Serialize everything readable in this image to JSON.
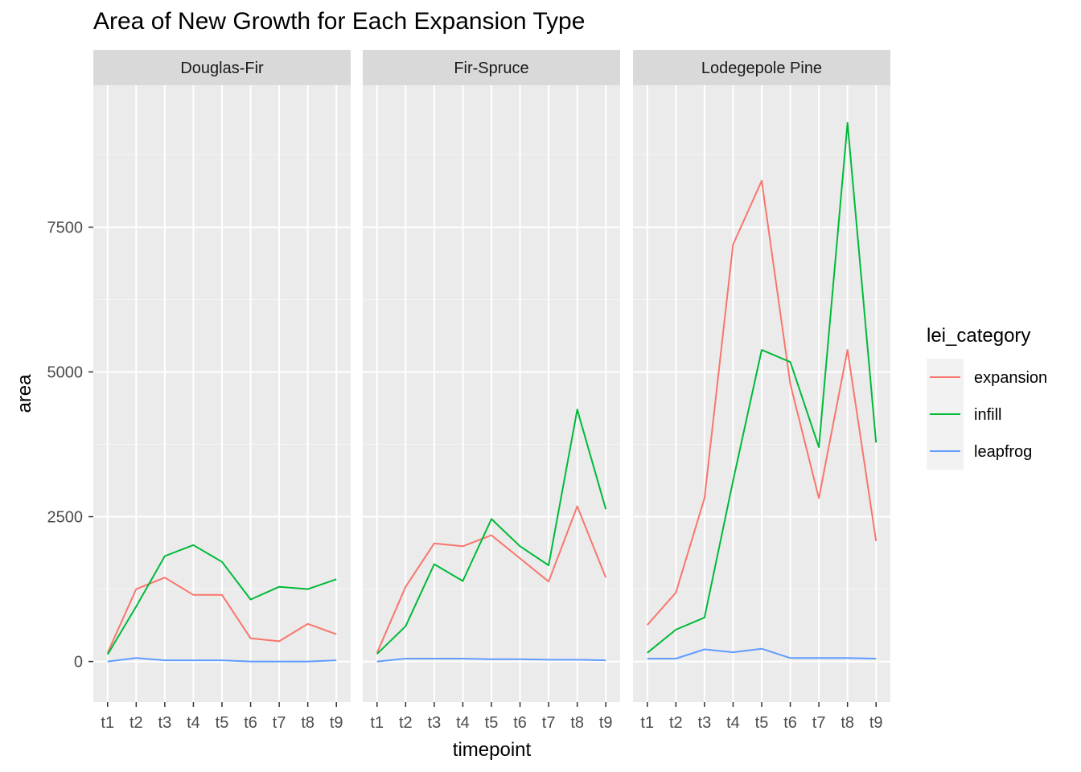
{
  "title": "Area of New Growth for Each Expansion Type",
  "chart_data": {
    "type": "line",
    "title": "Area of New Growth for Each Expansion Type",
    "xlabel": "timepoint",
    "ylabel": "area",
    "ylim": [
      -700,
      9950
    ],
    "y_ticks": [
      0,
      2500,
      5000,
      7500
    ],
    "y_tick_labels": [
      "0",
      "2500",
      "5000",
      "7500"
    ],
    "categories": [
      "t1",
      "t2",
      "t3",
      "t4",
      "t5",
      "t6",
      "t7",
      "t8",
      "t9"
    ],
    "legend": {
      "title": "lei_category",
      "position": "right",
      "entries": [
        {
          "name": "expansion",
          "color": "#F8766D"
        },
        {
          "name": "infill",
          "color": "#00BA38"
        },
        {
          "name": "leapfrog",
          "color": "#619CFF"
        }
      ]
    },
    "facets": [
      {
        "name": "Douglas-Fir",
        "series": [
          {
            "name": "expansion",
            "values": [
              150,
              1250,
              1450,
              1150,
              1150,
              400,
              350,
              650,
              470
            ]
          },
          {
            "name": "infill",
            "values": [
              120,
              950,
              1820,
              2010,
              1720,
              1070,
              1290,
              1250,
              1420
            ]
          },
          {
            "name": "leapfrog",
            "values": [
              0,
              60,
              20,
              20,
              20,
              0,
              0,
              0,
              20
            ]
          }
        ]
      },
      {
        "name": "Fir-Spruce",
        "series": [
          {
            "name": "expansion",
            "values": [
              150,
              1290,
              2040,
              1990,
              2180,
              1780,
              1380,
              2680,
              1450
            ]
          },
          {
            "name": "infill",
            "values": [
              130,
              610,
              1680,
              1390,
              2460,
              1990,
              1660,
              4350,
              2630
            ]
          },
          {
            "name": "leapfrog",
            "values": [
              0,
              50,
              50,
              50,
              40,
              40,
              30,
              30,
              20
            ]
          }
        ]
      },
      {
        "name": "Lodegepole Pine",
        "series": [
          {
            "name": "expansion",
            "values": [
              630,
              1190,
              2820,
              7200,
              8300,
              4790,
              2820,
              5380,
              2080
            ]
          },
          {
            "name": "infill",
            "values": [
              150,
              550,
              760,
              3120,
              5380,
              5170,
              3700,
              9300,
              3780
            ]
          },
          {
            "name": "leapfrog",
            "values": [
              50,
              50,
              210,
              160,
              220,
              60,
              60,
              60,
              50
            ]
          }
        ]
      }
    ],
    "grid": true
  }
}
